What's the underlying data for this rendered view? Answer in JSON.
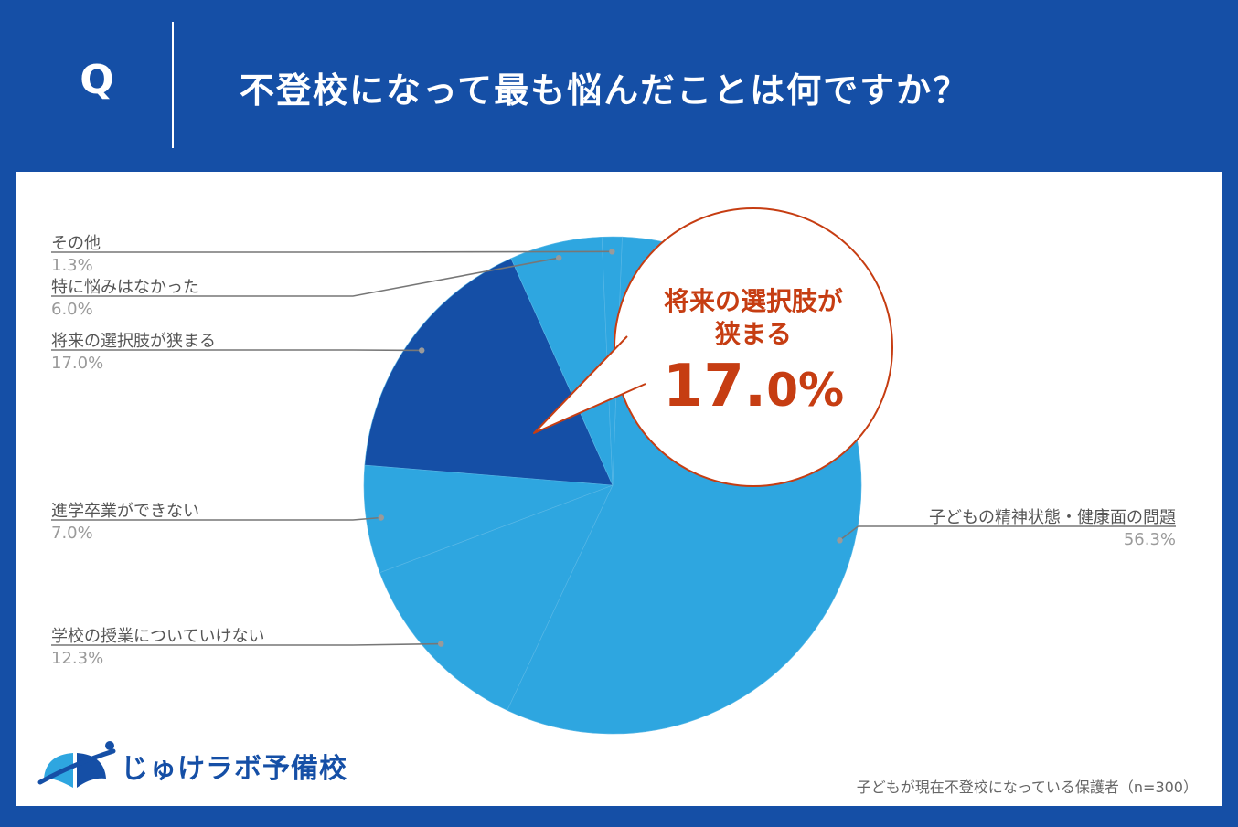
{
  "header": {
    "q_label": "Q",
    "question": "不登校になって最も悩んだことは何ですか？"
  },
  "callout": {
    "line1": "将来の選択肢が",
    "line2": "狭まる",
    "value_main": "17.",
    "value_dec": "0%"
  },
  "footer": {
    "logo_text": "じゅけラボ予備校",
    "note": "子どもが現在不登校になっている保護者（n=300）"
  },
  "colors": {
    "header_bg": "#154fa6",
    "slice_light": "#2ea6e0",
    "slice_highlight": "#154fa6",
    "callout_text": "#c63d12"
  },
  "chart_data": {
    "type": "pie",
    "slices": [
      {
        "label": "子どもの精神状態・健康面の問題",
        "value": 56.3,
        "pct_label": "56.3%",
        "highlight": false
      },
      {
        "label": "学校の授業についていけない",
        "value": 12.3,
        "pct_label": "12.3%",
        "highlight": false
      },
      {
        "label": "進学卒業ができない",
        "value": 7.0,
        "pct_label": "7.0%",
        "highlight": false
      },
      {
        "label": "将来の選択肢が狭まる",
        "value": 17.0,
        "pct_label": "17.0%",
        "highlight": true
      },
      {
        "label": "特に悩みはなかった",
        "value": 6.0,
        "pct_label": "6.0%",
        "highlight": false
      },
      {
        "label": "その他",
        "value": 1.3,
        "pct_label": "1.3%",
        "highlight": false
      }
    ]
  }
}
